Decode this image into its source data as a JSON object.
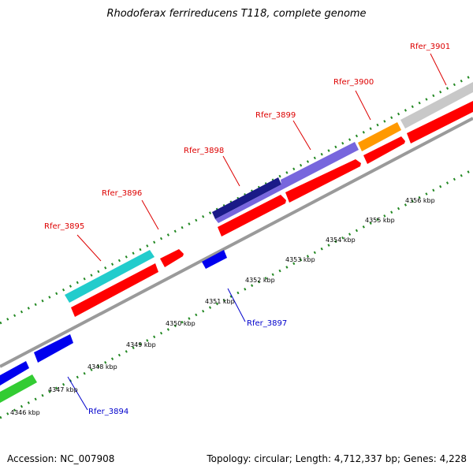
{
  "title": "Rhodoferax ferrireducens T118, complete genome",
  "footer": {
    "accession": "Accession: NC_007908",
    "topology": "Topology: circular; Length: 4,712,337 bp; Genes: 4,228"
  },
  "colors": {
    "label_top": "#dd0000",
    "label_bottom": "#0000cc",
    "backbone": "#8c8c8c",
    "tick": "#228822",
    "cds_red": "#ff0000",
    "forward_genes": {
      "Rfer_3895": "#22cccc",
      "Rfer_3898": "#1a1a88",
      "Rfer_3899": "#7766dd",
      "Rfer_3900": "#ff9900",
      "Rfer_3901": "#c8c8c8"
    },
    "reverse_gene": "#0000ee",
    "green_gene": "#33cc33"
  },
  "kbp_labels": [
    "4346 kbp",
    "4347 kbp",
    "4348 kbp",
    "4349 kbp",
    "4350 kbp",
    "4351 kbp",
    "4352 kbp",
    "4353 kbp",
    "4354 kbp",
    "4355 kbp",
    "4356 kbp"
  ],
  "gene_labels_top": [
    "Rfer_3895",
    "Rfer_3896",
    "Rfer_3898",
    "Rfer_3899",
    "Rfer_3900",
    "Rfer_3901"
  ],
  "gene_labels_bottom": [
    "Rfer_3894",
    "Rfer_3897"
  ]
}
